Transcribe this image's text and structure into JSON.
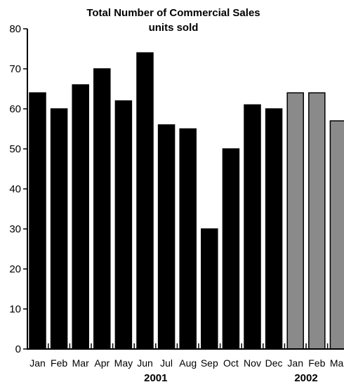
{
  "chart_data": {
    "type": "bar",
    "title": "Total Number of Commercial Sales",
    "subtitle": "units sold",
    "xlabel": "",
    "ylabel": "",
    "ylim": [
      0,
      80
    ],
    "yticks": [
      "0",
      "10",
      "20",
      "30",
      "40",
      "50",
      "60",
      "70",
      "80"
    ],
    "categories": [
      "Jan",
      "Feb",
      "Mar",
      "Apr",
      "May",
      "Jun",
      "Jul",
      "Aug",
      "Sep",
      "Oct",
      "Nov",
      "Dec",
      "Jan",
      "Feb",
      "Mar"
    ],
    "values": [
      64,
      60,
      66,
      70,
      62,
      74,
      56,
      55,
      30,
      50,
      61,
      60,
      64,
      64,
      57
    ],
    "year_groups": [
      {
        "label": "2001",
        "start": 0,
        "end": 11,
        "color": "#000000"
      },
      {
        "label": "2002",
        "start": 12,
        "end": 14,
        "color": "#8a8a8a"
      }
    ],
    "grid": false
  }
}
